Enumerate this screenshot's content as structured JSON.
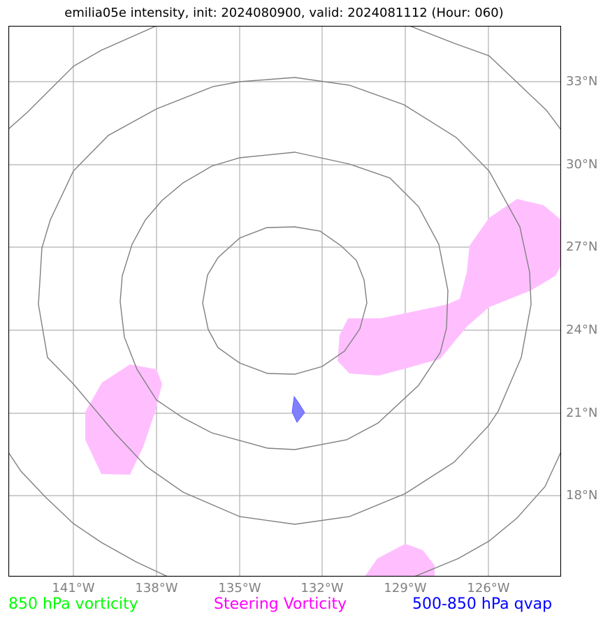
{
  "title": "emilia05e intensity, init: 2024080900, valid: 2024081112 (Hour: 060)",
  "lat_labels": [
    "33°N",
    "30°N",
    "27°N",
    "24°N",
    "21°N",
    "18°N"
  ],
  "lon_labels": [
    "141°W",
    "138°W",
    "135°W",
    "132°W",
    "129°W",
    "126°W"
  ],
  "legend": {
    "vort850": "850 hPa vorticity",
    "steering": "Steering Vorticity",
    "qvap": "500-850 hPa qvap"
  },
  "colors": {
    "vort850": "#00ff00",
    "steering": "#ff00ff",
    "steering_fill": "#ffbfff",
    "qvap": "#0000ff",
    "qvap_fill": "#8080ff",
    "grid": "#b0b0b0",
    "rings": "#808080"
  }
}
